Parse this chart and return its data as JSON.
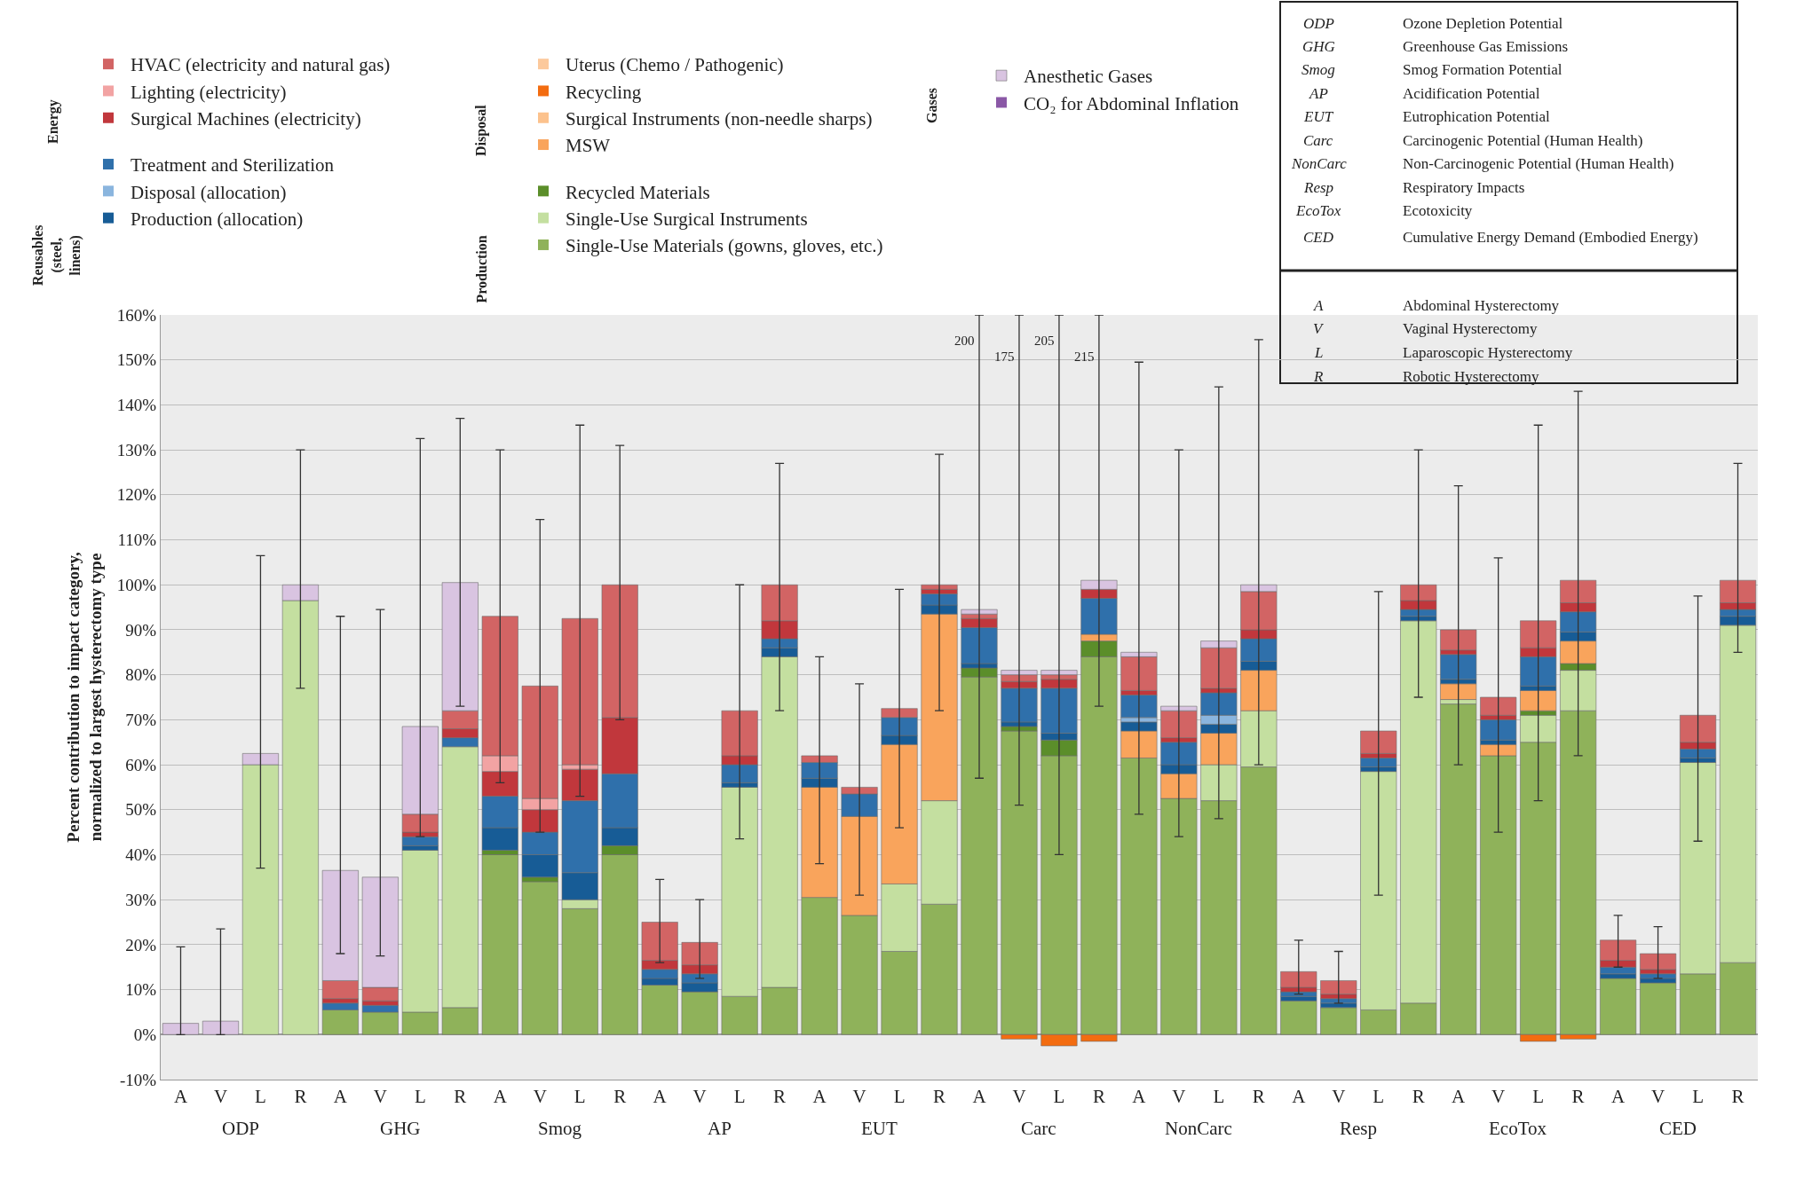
{
  "chart_data": {
    "type": "bar",
    "stacked": true,
    "ylabel": "Percent contribution to impact category,\nnormalized to largest hysterectomy type",
    "categories": [
      "A",
      "V",
      "L",
      "R",
      "A",
      "V",
      "L",
      "R",
      "A",
      "V",
      "L",
      "R",
      "A",
      "V",
      "L",
      "R",
      "A",
      "V",
      "L",
      "R",
      "A",
      "V",
      "L",
      "R",
      "A",
      "V",
      "L",
      "R",
      "A",
      "V",
      "L",
      "R",
      "A",
      "V",
      "L",
      "R",
      "A",
      "V",
      "L",
      "R"
    ],
    "ylim": [
      -10,
      160
    ],
    "yticks": [
      {
        "value": -10,
        "label": "-10%"
      },
      {
        "value": 0,
        "label": "0%"
      },
      {
        "value": 10,
        "label": "10%"
      },
      {
        "value": 20,
        "label": "20%"
      },
      {
        "value": 30,
        "label": "30%"
      },
      {
        "value": 40,
        "label": "40%"
      },
      {
        "value": 50,
        "label": "50%"
      },
      {
        "value": 60,
        "label": "60%"
      },
      {
        "value": 70,
        "label": "70%"
      },
      {
        "value": 80,
        "label": "80%"
      },
      {
        "value": 90,
        "label": "90%"
      },
      {
        "value": 100,
        "label": "100%"
      },
      {
        "value": 110,
        "label": "110%"
      },
      {
        "value": 120,
        "label": "120%"
      },
      {
        "value": 130,
        "label": "130%"
      },
      {
        "value": 140,
        "label": "140%"
      },
      {
        "value": 150,
        "label": "150%"
      },
      {
        "value": 160,
        "label": "160%"
      }
    ],
    "grid": "y",
    "legend": "top",
    "series": [
      {
        "name": "Single-Use Materials (gowns, gloves, etc.)",
        "color": "#8fb25a",
        "values": [
          0,
          0,
          0,
          0,
          5.5,
          5,
          5,
          6,
          40,
          34,
          28,
          40,
          11,
          9.5,
          8.5,
          10.5,
          30.5,
          26.5,
          18.5,
          29,
          79.5,
          67.5,
          62,
          84,
          61.5,
          52.5,
          52,
          59.5,
          7.5,
          6,
          5.5,
          7,
          73.5,
          62,
          65,
          72,
          12.5,
          11.5,
          13.5,
          16
        ]
      },
      {
        "name": "Single-Use Surgical Instruments",
        "color": "#c4dfa0",
        "values": [
          0,
          0,
          60,
          96.5,
          0,
          0,
          36,
          58,
          0,
          0,
          2,
          0,
          0,
          0,
          46.5,
          73.5,
          0,
          0,
          15,
          23,
          0,
          0,
          0,
          0,
          0,
          0,
          8,
          12.5,
          0,
          0,
          53,
          85,
          1,
          0,
          6,
          9,
          0,
          0,
          47,
          75
        ]
      },
      {
        "name": "Recycled Materials",
        "color": "#5b8e2a",
        "values": [
          0,
          0,
          0,
          0,
          0,
          0,
          0,
          0,
          1,
          1,
          0,
          2,
          0,
          0,
          0,
          0,
          0,
          0,
          0,
          0,
          2,
          1,
          3.5,
          3.5,
          0,
          0,
          0,
          0,
          0,
          0,
          0,
          0,
          0,
          0,
          1,
          1.5,
          0,
          0,
          0,
          0
        ]
      },
      {
        "name": "MSW",
        "color": "#f9a45c",
        "values": [
          0,
          0,
          0,
          0,
          0,
          0,
          0,
          0,
          0,
          0,
          0,
          0,
          0,
          0,
          0,
          0,
          24.5,
          22,
          31,
          41.5,
          0,
          0,
          0,
          1.5,
          6,
          5.5,
          7,
          9,
          0,
          0,
          0,
          0,
          3.5,
          2.5,
          4.5,
          5,
          0,
          0,
          0,
          0
        ]
      },
      {
        "name": "Surgical Instruments (non-needle sharps)",
        "color": "#fcc28d",
        "values": [
          0,
          0,
          0,
          0,
          0,
          0,
          0,
          0,
          0,
          0,
          0,
          0,
          0,
          0,
          0,
          0,
          0,
          0,
          0,
          0,
          0,
          0,
          0,
          0,
          0,
          0,
          0,
          0,
          0,
          0,
          0,
          0,
          0,
          0,
          0,
          0,
          0,
          0,
          0,
          0
        ]
      },
      {
        "name": "Recycling",
        "color": "#f36c10",
        "values": [
          0,
          0,
          0,
          0,
          0,
          0,
          0,
          0,
          0,
          0,
          0,
          0,
          0,
          0,
          0,
          0,
          0,
          0,
          0,
          0,
          0,
          -1,
          -2.5,
          -1.5,
          0,
          0,
          0,
          0,
          0,
          0,
          0,
          0,
          0,
          0,
          -1.5,
          -1,
          0,
          0,
          0,
          0
        ]
      },
      {
        "name": "Uterus (Chemo / Pathogenic)",
        "color": "#fcc99c",
        "values": [
          0,
          0,
          0,
          0,
          0,
          0,
          0,
          0,
          0,
          0,
          0,
          0,
          0,
          0,
          0,
          0,
          0,
          0,
          0,
          0,
          0,
          0,
          0,
          0,
          0,
          0,
          0,
          0,
          0,
          0,
          0,
          0,
          0,
          0,
          0,
          0,
          0,
          0,
          0,
          0
        ]
      },
      {
        "name": "Production (allocation)",
        "color": "#175c96",
        "values": [
          0,
          0,
          0,
          0,
          0,
          0,
          1,
          0,
          5,
          5,
          6,
          4,
          1.5,
          2,
          1,
          2,
          2,
          0,
          2,
          2,
          1,
          1,
          1.5,
          0,
          2,
          2,
          2,
          2,
          1,
          1,
          1,
          1,
          1,
          1,
          1,
          2,
          1,
          1,
          1,
          2
        ]
      },
      {
        "name": "Disposal (allocation)",
        "color": "#8ab5de",
        "values": [
          0,
          0,
          0,
          0,
          0,
          0,
          0,
          0,
          0,
          0,
          0,
          0,
          0,
          0,
          0,
          0,
          0,
          0,
          0,
          0,
          0,
          0,
          0,
          0,
          1,
          0,
          2,
          0,
          0,
          0,
          0,
          0,
          0,
          0,
          0,
          0,
          0,
          0,
          0,
          0
        ]
      },
      {
        "name": "Treatment and Sterilization",
        "color": "#2f70ab",
        "values": [
          0,
          0,
          0,
          0,
          1.5,
          1.5,
          2,
          2,
          7,
          5,
          16,
          12,
          2,
          2,
          4,
          2,
          3.5,
          5,
          4,
          2.5,
          8,
          7.5,
          10,
          8,
          5,
          5,
          5,
          5,
          1,
          1,
          2,
          1.5,
          5.5,
          4.5,
          6.5,
          4.5,
          1.5,
          1,
          2,
          1.5
        ]
      },
      {
        "name": "Surgical Machines (electricity)",
        "color": "#c1373c",
        "values": [
          0,
          0,
          0,
          0,
          1,
          1,
          1,
          2,
          5.5,
          5,
          7,
          12.5,
          2,
          2,
          2,
          4,
          0,
          0,
          0,
          1,
          2,
          1.5,
          2,
          2,
          1,
          1,
          1,
          2,
          1,
          1,
          1,
          2,
          1,
          1,
          2,
          2,
          1.5,
          1,
          1.5,
          1.5
        ]
      },
      {
        "name": "Lighting (electricity)",
        "color": "#f2a3a3",
        "values": [
          0,
          0,
          0,
          0,
          0,
          0,
          0,
          0,
          3.5,
          2.5,
          1,
          0,
          0,
          0,
          0,
          0,
          0,
          0,
          0,
          0,
          0,
          0,
          0,
          0,
          0,
          0,
          0,
          0,
          0,
          0,
          0,
          0,
          0,
          0,
          0,
          0,
          0,
          0,
          0,
          0
        ]
      },
      {
        "name": "HVAC (electricity and natural gas)",
        "color": "#d26464",
        "values": [
          0,
          0,
          0,
          0,
          4,
          3,
          4,
          4,
          31,
          25,
          32.5,
          29.5,
          8.5,
          5,
          10,
          8,
          1.5,
          1.5,
          2,
          1,
          1,
          1.5,
          1,
          0,
          7.5,
          6,
          9,
          8.5,
          3.5,
          3,
          5,
          3.5,
          4.5,
          4,
          6,
          5,
          4.5,
          3.5,
          6,
          5
        ]
      },
      {
        "name": "CO₂ for Abdominal Inflation",
        "color": "#8a58a6",
        "values": [
          0,
          0,
          0,
          0,
          0,
          0,
          0,
          0,
          0,
          0,
          0,
          0,
          0,
          0,
          0,
          0,
          0,
          0,
          0,
          0,
          0,
          0,
          0,
          0,
          0,
          0,
          0,
          0,
          0,
          0,
          0,
          0,
          0,
          0,
          0,
          0,
          0,
          0,
          0,
          0
        ]
      },
      {
        "name": "Anesthetic Gases",
        "color": "#d9c4e1",
        "values": [
          2.5,
          3,
          2.5,
          3.5,
          24.5,
          24.5,
          19.5,
          28.5,
          0,
          0,
          0,
          0,
          0,
          0,
          0,
          0,
          0,
          0,
          0,
          0,
          1,
          1,
          1,
          2,
          1,
          1,
          1.5,
          1.5,
          0,
          0,
          0,
          0,
          0,
          0,
          0,
          0,
          0,
          0,
          0,
          0
        ],
        "errors": [
          [
            0,
            19.5
          ],
          [
            0,
            23.5
          ],
          [
            37,
            106.5
          ],
          [
            77,
            130
          ],
          [
            18,
            93
          ],
          [
            17.5,
            94.5
          ],
          [
            44,
            132.5
          ],
          [
            73,
            137
          ],
          [
            56,
            130
          ],
          [
            45,
            114.5
          ],
          [
            53,
            135.5
          ],
          [
            70,
            131
          ],
          [
            16,
            34.5
          ],
          [
            12.5,
            30
          ],
          [
            43.5,
            100
          ],
          [
            72,
            127
          ],
          [
            38,
            84
          ],
          [
            31,
            78
          ],
          [
            46,
            99
          ],
          [
            72,
            129
          ],
          [
            57,
            160
          ],
          [
            51,
            160
          ],
          [
            40,
            160
          ],
          [
            73,
            160
          ],
          [
            49,
            149.5
          ],
          [
            44,
            130
          ],
          [
            48,
            144
          ],
          [
            60,
            154.5
          ],
          [
            9,
            21
          ],
          [
            7,
            18.5
          ],
          [
            31,
            98.5
          ],
          [
            75,
            130
          ],
          [
            60,
            122
          ],
          [
            45,
            106
          ],
          [
            52,
            135.5
          ],
          [
            62,
            143
          ],
          [
            15,
            26.5
          ],
          [
            12.5,
            24
          ],
          [
            43,
            97.5
          ],
          [
            85,
            127
          ]
        ]
      }
    ],
    "annotations": [
      "ODP",
      "GHG",
      "Smog",
      "AP",
      "EUT",
      "Carc",
      "NonCarc",
      "Resp",
      "EcoTox",
      "CED",
      "Energy",
      "Reusables (steel, linens)",
      "Disposal",
      "Production",
      "Gases",
      "ODP",
      "Ozone Depletion Potential",
      "GHG",
      "Greenhouse Gas Emissions",
      "Smog",
      "Smog Formation Potential",
      "AP",
      "Acidification Potential",
      "EUT",
      "Eutrophication Potential",
      "Carc",
      "Carcinogenic Potential (Human Health)",
      "NonCarc",
      "Non-Carcinogenic Potential (Human Health)",
      "Resp",
      "Respiratory Impacts",
      "EcoTox",
      "Ecotoxicity",
      "CED",
      "Cumulative Energy Demand (Embodied Energy)",
      "A",
      "Abdominal Hysterectomy",
      "V",
      "Vaginal Hysterectomy",
      "L",
      "Laparoscopic Hysterectomy",
      "R",
      "Robotic Hysterectomy",
      "200",
      "175",
      "205",
      "215"
    ]
  }
}
